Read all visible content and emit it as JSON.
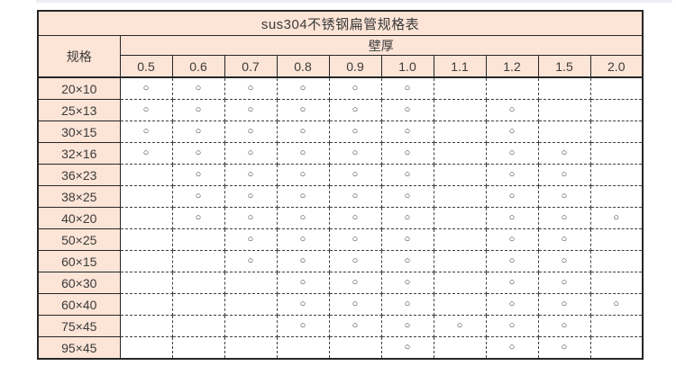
{
  "chart_data": {
    "type": "table",
    "title": "sus304不锈钢扁管规格表",
    "row_header_label": "规格",
    "col_group_label": "壁厚",
    "columns": [
      "0.5",
      "0.6",
      "0.7",
      "0.8",
      "0.9",
      "1.0",
      "1.1",
      "1.2",
      "1.5",
      "2.0"
    ],
    "rows": [
      "20×10",
      "25×13",
      "30×15",
      "32×16",
      "36×23",
      "38×25",
      "40×20",
      "50×25",
      "60×15",
      "60×30",
      "60×40",
      "75×45",
      "95×45"
    ],
    "mark_symbol": "○",
    "matrix": [
      [
        1,
        1,
        1,
        1,
        1,
        1,
        0,
        0,
        0,
        0
      ],
      [
        1,
        1,
        1,
        1,
        1,
        1,
        0,
        1,
        0,
        0
      ],
      [
        1,
        1,
        1,
        1,
        1,
        1,
        0,
        1,
        0,
        0
      ],
      [
        1,
        1,
        1,
        1,
        1,
        1,
        0,
        1,
        1,
        0
      ],
      [
        0,
        1,
        1,
        1,
        1,
        1,
        0,
        1,
        1,
        0
      ],
      [
        0,
        1,
        1,
        1,
        1,
        1,
        0,
        1,
        1,
        0
      ],
      [
        0,
        1,
        1,
        1,
        1,
        1,
        0,
        1,
        1,
        1
      ],
      [
        0,
        0,
        1,
        1,
        1,
        1,
        0,
        1,
        1,
        0
      ],
      [
        0,
        0,
        1,
        1,
        1,
        1,
        0,
        1,
        1,
        0
      ],
      [
        0,
        0,
        0,
        1,
        1,
        1,
        0,
        1,
        1,
        0
      ],
      [
        0,
        0,
        0,
        1,
        1,
        1,
        0,
        1,
        1,
        1
      ],
      [
        0,
        0,
        0,
        1,
        1,
        1,
        1,
        1,
        1,
        0
      ],
      [
        0,
        0,
        0,
        0,
        0,
        1,
        0,
        1,
        1,
        0
      ]
    ],
    "colors": {
      "header_fill": "#fce4d6",
      "border": "#262626",
      "text": "#3a3a3a",
      "background": "#ffffff",
      "top_strip": "#ece9f5"
    }
  }
}
